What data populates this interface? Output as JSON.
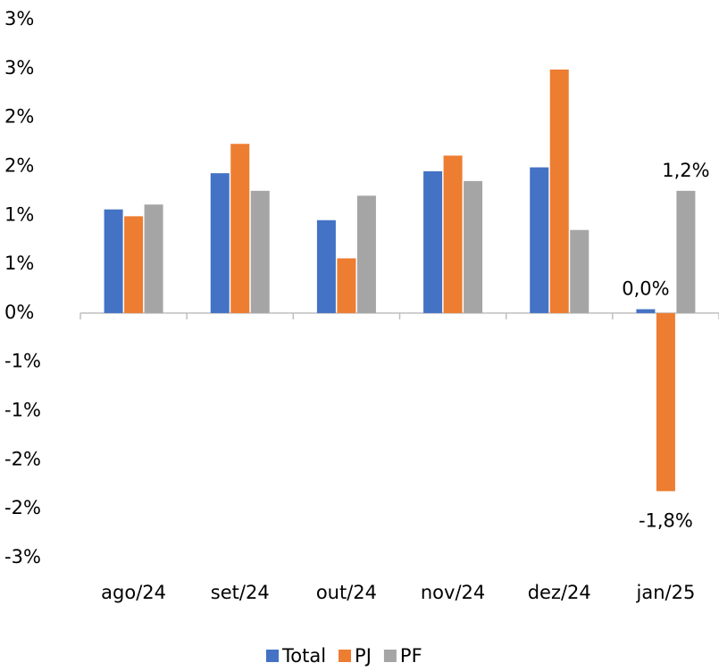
{
  "chart_data": {
    "type": "bar",
    "categories": [
      "ago/24",
      "set/24",
      "out/24",
      "nov/24",
      "dez/24",
      "jan/25"
    ],
    "series": [
      {
        "name": "Total",
        "color": "#4472c4",
        "values": [
          1.06,
          1.43,
          0.95,
          1.45,
          1.49,
          0.04
        ],
        "value_labels": [
          null,
          null,
          null,
          null,
          null,
          "0,0%"
        ]
      },
      {
        "name": "PJ",
        "color": "#ed7d31",
        "values": [
          0.99,
          1.73,
          0.56,
          1.61,
          2.49,
          -1.82
        ],
        "value_labels": [
          null,
          null,
          null,
          null,
          null,
          "-1,8%"
        ]
      },
      {
        "name": "PF",
        "color": "#a5a5a5",
        "values": [
          1.11,
          1.25,
          1.2,
          1.35,
          0.85,
          1.25
        ],
        "value_labels": [
          null,
          null,
          null,
          null,
          null,
          "1,2%"
        ]
      }
    ],
    "ylim": [
      -2.5,
      3.0
    ],
    "yticks": [
      {
        "value": -2.5,
        "label": "-3%"
      },
      {
        "value": -2.0,
        "label": "-2%"
      },
      {
        "value": -1.5,
        "label": "-2%"
      },
      {
        "value": -1.0,
        "label": "-1%"
      },
      {
        "value": -0.5,
        "label": "-1%"
      },
      {
        "value": 0,
        "label": "0%"
      },
      {
        "value": 0.5,
        "label": "1%"
      },
      {
        "value": 1.0,
        "label": "1%"
      },
      {
        "value": 1.5,
        "label": "2%"
      },
      {
        "value": 2.0,
        "label": "2%"
      },
      {
        "value": 2.5,
        "label": "3%"
      },
      {
        "value": 3.0,
        "label": "3%"
      }
    ],
    "grid": false,
    "legend": "bottom"
  }
}
